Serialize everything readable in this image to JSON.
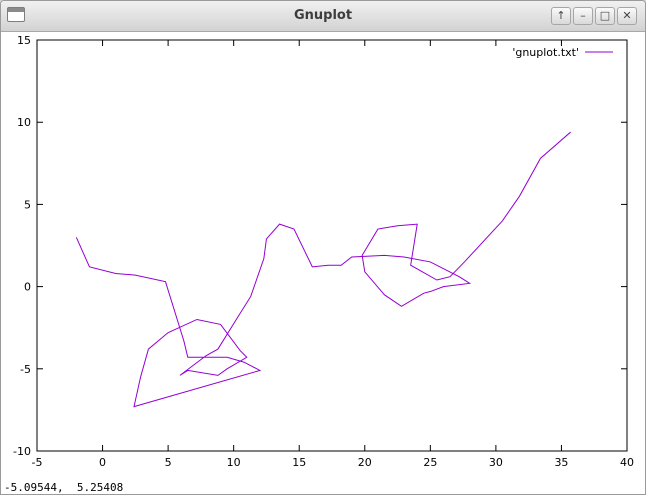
{
  "window": {
    "title": "Gnuplot",
    "controls": [
      {
        "name": "up-arrow-icon",
        "glyph": "↑"
      },
      {
        "name": "minimize-icon",
        "glyph": "–"
      },
      {
        "name": "maximize-icon",
        "glyph": "□"
      },
      {
        "name": "close-icon",
        "glyph": "✕"
      }
    ]
  },
  "status": {
    "coordinates": "-5.09544,  5.25408"
  },
  "colors": {
    "series": "#9400d3",
    "axis": "#000000"
  },
  "chart_data": {
    "type": "line",
    "title": "",
    "xlabel": "",
    "ylabel": "",
    "xlim": [
      -5,
      40
    ],
    "ylim": [
      -10,
      15
    ],
    "xticks": [
      -5,
      0,
      5,
      10,
      15,
      20,
      25,
      30,
      35,
      40
    ],
    "yticks": [
      -10,
      -5,
      0,
      5,
      10,
      15
    ],
    "grid": false,
    "legend": "top-right",
    "series": [
      {
        "name": "'gnuplot.txt'",
        "points": [
          [
            -2,
            3
          ],
          [
            -1,
            1.2
          ],
          [
            1,
            0.8
          ],
          [
            2.5,
            0.7
          ],
          [
            4.8,
            0.3
          ],
          [
            6.2,
            -3.3
          ],
          [
            6.5,
            -4.3
          ],
          [
            9.5,
            -4.3
          ],
          [
            10.8,
            -4.6
          ],
          [
            12,
            -5.1
          ],
          [
            2.4,
            -7.3
          ],
          [
            2.9,
            -5.5
          ],
          [
            3.5,
            -3.8
          ],
          [
            5,
            -2.8
          ],
          [
            7.2,
            -2
          ],
          [
            9,
            -2.3
          ],
          [
            10.5,
            -3.9
          ],
          [
            11,
            -4.3
          ],
          [
            9.5,
            -5
          ],
          [
            8.8,
            -5.4
          ],
          [
            6.5,
            -5.1
          ],
          [
            5.9,
            -5.4
          ],
          [
            7.9,
            -4.2
          ],
          [
            8.8,
            -3.8
          ],
          [
            10.2,
            -2
          ],
          [
            11.3,
            -0.6
          ],
          [
            12.3,
            1.7
          ],
          [
            12.5,
            2.9
          ],
          [
            13.5,
            3.8
          ],
          [
            14.6,
            3.5
          ],
          [
            16,
            1.2
          ],
          [
            17.2,
            1.3
          ],
          [
            18.2,
            1.3
          ],
          [
            19,
            1.8
          ],
          [
            21.5,
            1.9
          ],
          [
            23,
            1.8
          ],
          [
            25,
            1.5
          ],
          [
            27.2,
            0.6
          ],
          [
            28,
            0.2
          ],
          [
            26,
            0
          ],
          [
            25,
            -0.3
          ],
          [
            24.5,
            -0.4
          ],
          [
            22.8,
            -1.2
          ],
          [
            21.5,
            -0.5
          ],
          [
            20,
            0.9
          ],
          [
            19.8,
            1.9
          ],
          [
            21,
            3.5
          ],
          [
            22.5,
            3.7
          ],
          [
            24,
            3.8
          ],
          [
            23.5,
            1.3
          ],
          [
            25.5,
            0.4
          ],
          [
            26.5,
            0.6
          ],
          [
            27.6,
            1.5
          ],
          [
            30.5,
            4
          ],
          [
            31.8,
            5.5
          ],
          [
            33.4,
            7.8
          ],
          [
            35.7,
            9.4
          ]
        ]
      }
    ]
  }
}
